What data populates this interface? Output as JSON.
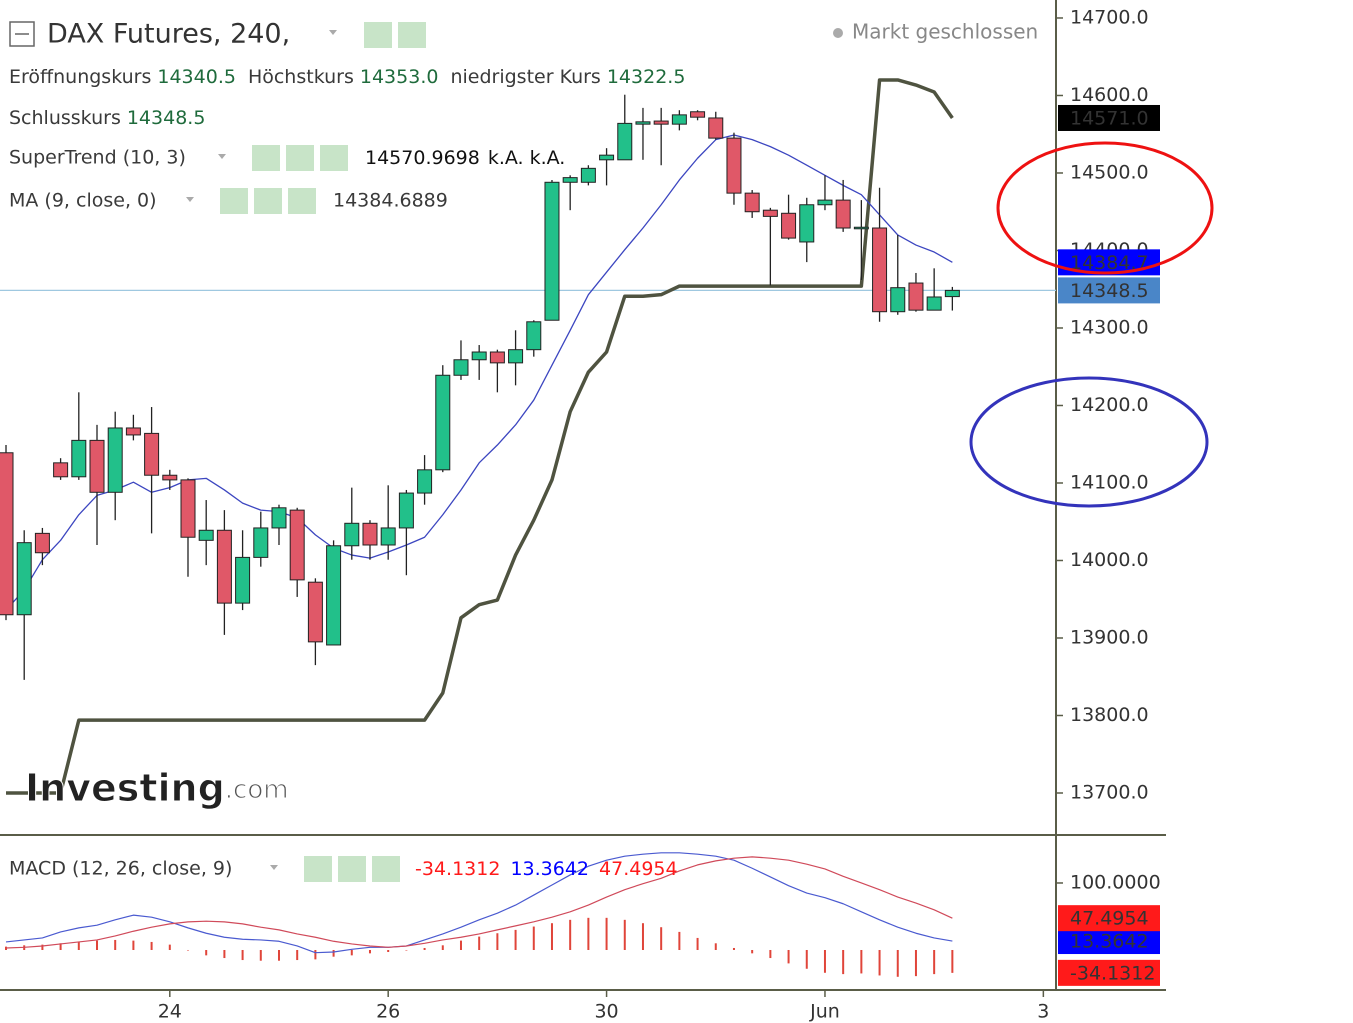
{
  "chart_data": [
    {
      "type": "candlestick",
      "title": "DAX Futures, 240,",
      "status": "Markt geschlossen",
      "legend": {
        "open_label": "Eröffnungskurs",
        "open": "14340.5",
        "high_label": "Höchstkurs",
        "high": "14353.0",
        "low_label": "niedrigster Kurs",
        "low": "14322.5",
        "close_label": "Schlusskurs",
        "close": "14348.5"
      },
      "watermark": "Investing",
      "watermark_suffix": ".com",
      "xlim": [
        -0.33,
        57.64
      ],
      "ylim": [
        13645.8,
        14723.2
      ],
      "yticks": [
        {
          "value": 14700,
          "label": "14700.0"
        },
        {
          "value": 14600,
          "label": "14600.0"
        },
        {
          "value": 14500,
          "label": "14500.0"
        },
        {
          "value": 14400,
          "label": "14400.0"
        },
        {
          "value": 14300,
          "label": "14300.0"
        },
        {
          "value": 14200,
          "label": "14200.0"
        },
        {
          "value": 14100,
          "label": "14100.0"
        },
        {
          "value": 14000,
          "label": "14000.0"
        },
        {
          "value": 13900,
          "label": "13900.0"
        },
        {
          "value": 13800,
          "label": "13800.0"
        },
        {
          "value": 13700,
          "label": "13700.0"
        }
      ],
      "up_color": "#22c08a",
      "down_color": "#e05868",
      "close_line_color": "#9fc8e0",
      "close_badge": "14348.5",
      "close_badge_color": "#4a86c8",
      "open": [
        14139,
        13930,
        14035,
        14126,
        14108,
        14155,
        14088,
        14171,
        14164,
        14110,
        14104,
        14026,
        14039,
        13945,
        14004,
        14042,
        14065,
        13972,
        13891,
        14019,
        14048,
        14020,
        14042,
        14087,
        14117,
        14239,
        14259,
        14269,
        14255,
        14272,
        14310,
        14488,
        14488,
        14517,
        14517,
        14563,
        14567,
        14563,
        14579,
        14571,
        14545,
        14474,
        14452,
        14448,
        14411,
        14459,
        14465,
        14428,
        14429,
        14321,
        14358,
        14323,
        14340.5
      ],
      "high": [
        14149,
        14039,
        14042,
        14132,
        14217,
        14175,
        14192,
        14188,
        14198,
        14117,
        14106,
        14078,
        14065,
        14039,
        14063,
        14072,
        14068,
        13977,
        14026,
        14094,
        14052,
        14097,
        14091,
        14136,
        14252,
        14284,
        14278,
        14272,
        14297,
        14310,
        14491,
        14497,
        14510,
        14532,
        14601,
        14584,
        14584,
        14581,
        14581,
        14579,
        14552,
        14478,
        14455,
        14472,
        14468,
        14497,
        14491,
        14465,
        14481,
        14420,
        14371,
        14377,
        14353.0
      ],
      "low": [
        13923,
        13846,
        13994,
        14104,
        14104,
        14020,
        14052,
        14155,
        14035,
        14091,
        13979,
        13994,
        13904,
        13936,
        13992,
        14020,
        13953,
        13865,
        13891,
        14001,
        14001,
        14001,
        13981,
        14072,
        14114,
        14233,
        14233,
        14217,
        14226,
        14263,
        14310,
        14452,
        14484,
        14484,
        14517,
        14517,
        14510,
        14555,
        14568,
        14543,
        14459,
        14442,
        14355,
        14414,
        14385,
        14452,
        14424,
        14362,
        14308,
        14317,
        14321,
        14323,
        14322.5
      ],
      "close": [
        13930,
        14023,
        14010,
        14108,
        14155,
        14088,
        14171,
        14162,
        14110,
        14104,
        14030,
        14039,
        13945,
        14004,
        14042,
        14068,
        13975,
        13895,
        14019,
        14048,
        14020,
        14042,
        14087,
        14117,
        14239,
        14259,
        14269,
        14255,
        14272,
        14308,
        14488,
        14494,
        14506,
        14523,
        14564,
        14566,
        14563,
        14575,
        14572,
        14545,
        14474,
        14450,
        14444,
        14416,
        14459,
        14465,
        14429,
        14430,
        14321,
        14352,
        14323,
        14340,
        14348.5
      ],
      "series": [
        {
          "name": "SuperTrend (10, 3)",
          "color": "#4f5340",
          "width": 3.5,
          "legend_values": [
            "k.A.",
            "k.A."
          ],
          "badge": "14571.0",
          "badge_color": "#000000",
          "values": [
            13700,
            13700,
            13700,
            13700,
            13794,
            13794,
            13794,
            13794,
            13794,
            13794,
            13794,
            13794,
            13794,
            13794,
            13794,
            13794,
            13794,
            13794,
            13794,
            13794,
            13794,
            13794,
            13794,
            13794,
            13829,
            13926,
            13943,
            13949,
            14007,
            14052,
            14104,
            14192,
            14243,
            14269,
            14341,
            14341,
            14343,
            14354,
            14354,
            14354,
            14354,
            14354,
            14354,
            14354,
            14354,
            14354,
            14354,
            14354,
            14620,
            14620,
            14613.5,
            14604.5,
            14570.9698
          ]
        },
        {
          "name": "MA (9, close, 0)",
          "color": "#3c46c0",
          "width": 1.3,
          "badge": "14384.7",
          "badge_color": "#0000ff",
          "values": [
            13936,
            13962,
            14001,
            14026,
            14059,
            14084,
            14091,
            14101,
            14088,
            14094,
            14104,
            14106,
            14091,
            14074,
            14065,
            14063,
            14055,
            14033,
            14016,
            14007,
            14003,
            14011,
            14020,
            14030,
            14059,
            14091,
            14126,
            14149,
            14175,
            14207,
            14252,
            14297,
            14343,
            14372,
            14401,
            14429,
            14459,
            14491,
            14519,
            14543,
            14549,
            14543,
            14534,
            14523,
            14510,
            14497,
            14484,
            14472,
            14446,
            14420,
            14407,
            14398,
            14384.6889
          ]
        }
      ]
    },
    {
      "type": "macd",
      "title": "MACD (12, 26, close, 9)",
      "xlim": [
        -0.33,
        57.64
      ],
      "ylim": [
        -59.7,
        171.6
      ],
      "yticks": [
        {
          "value": 100,
          "label": "100.0000"
        }
      ],
      "xticks": [
        {
          "value": 9,
          "label": "24"
        },
        {
          "value": 21,
          "label": "26"
        },
        {
          "value": 33,
          "label": "30"
        },
        {
          "value": 45,
          "label": "Jun"
        },
        {
          "value": 57,
          "label": "3"
        }
      ],
      "series": [
        {
          "kind": "bar",
          "color": "#e0453a",
          "badge_color": "#ff1a1a",
          "values": [
            5,
            7,
            8,
            10,
            12,
            14,
            15,
            14,
            12,
            8,
            0,
            -8,
            -12,
            -15,
            -16,
            -16,
            -15,
            -14,
            -10,
            -8,
            -5,
            -3,
            0,
            3,
            7,
            14,
            20,
            25,
            30,
            35,
            40,
            45,
            48,
            48,
            45,
            40,
            34,
            27,
            18,
            10,
            3,
            -5,
            -12,
            -20,
            -28,
            -34,
            -36,
            -35,
            -38,
            -40,
            -39,
            -36,
            -34.1312
          ]
        },
        {
          "kind": "line",
          "color": "#4a5ad0",
          "badge_color": "#0000ff",
          "values": [
            12,
            15,
            18,
            27,
            33,
            37,
            45,
            52,
            49,
            42,
            33,
            25,
            19,
            16,
            15,
            13,
            6,
            -4,
            -3,
            1,
            4,
            4,
            6,
            15,
            24,
            34,
            45,
            55,
            67,
            82,
            97,
            112,
            125,
            134,
            140,
            143,
            145,
            145,
            143,
            140,
            134,
            122,
            109,
            96,
            85,
            78,
            69,
            57,
            45,
            34,
            25,
            18,
            13.3642
          ]
        },
        {
          "kind": "line",
          "color": "#d04a5a",
          "badge_color": "#ff1a1a",
          "values": [
            3,
            4,
            6,
            9,
            12,
            15,
            21,
            28,
            34,
            39,
            42,
            43,
            42,
            39,
            34,
            30,
            24,
            19,
            13,
            9,
            6,
            4,
            6,
            10,
            15,
            19,
            24,
            30,
            36,
            42,
            49,
            57,
            67,
            79,
            90,
            99,
            107,
            118,
            127,
            133,
            137,
            139,
            137,
            134,
            128,
            121,
            110,
            100,
            90,
            79,
            70,
            60,
            47.4954
          ]
        }
      ]
    }
  ]
}
